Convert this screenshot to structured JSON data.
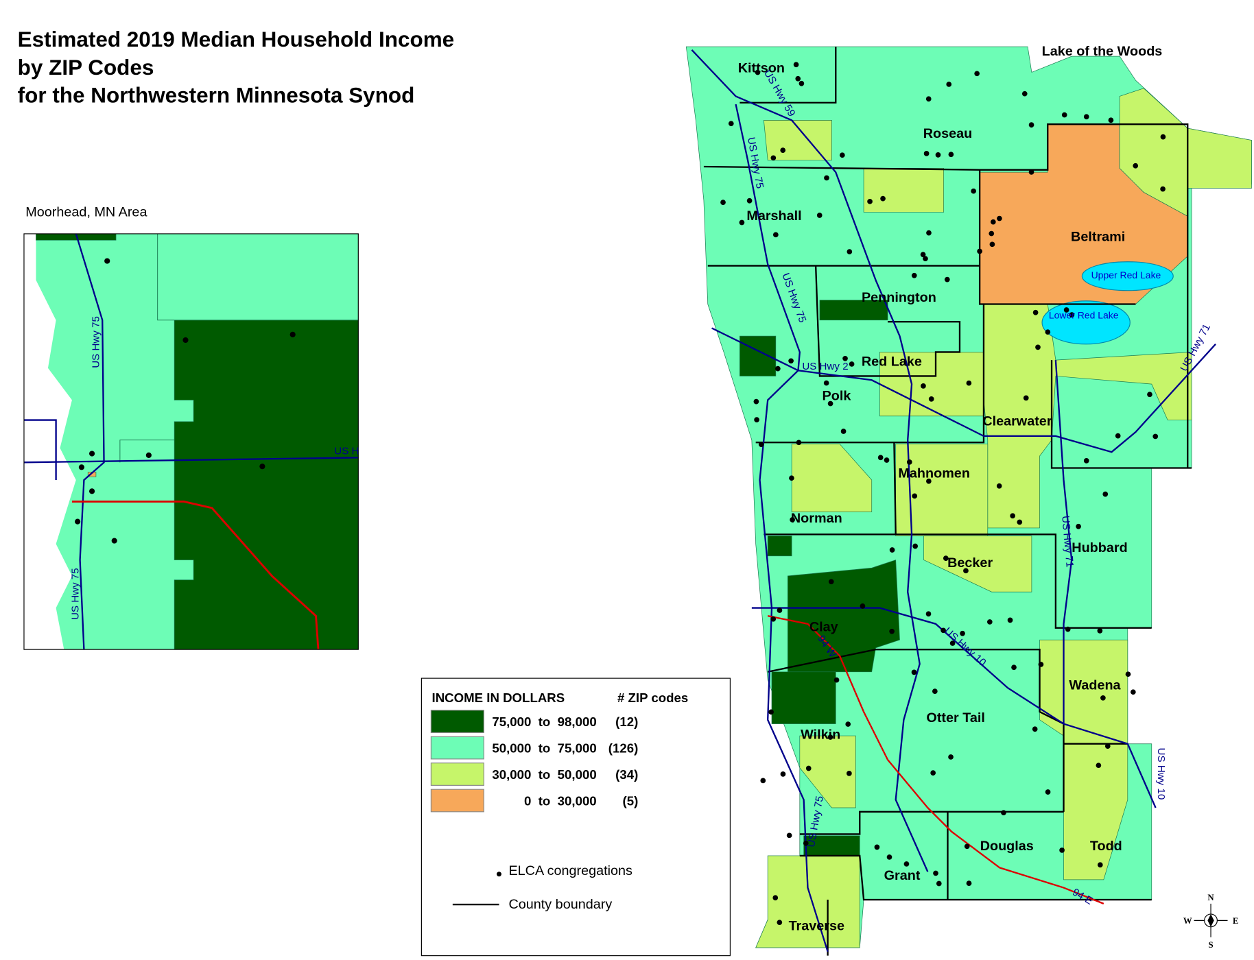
{
  "title": [
    "Estimated 2019 Median Household Income",
    "by ZIP Codes",
    "for the Northwestern Minnesota Synod"
  ],
  "inset": {
    "title": "Moorhead, MN Area",
    "labels": [
      "US Hwy 75",
      "US Hwy 75",
      "US H"
    ]
  },
  "legend": {
    "header": "INCOME IN DOLLARS",
    "count_header": "# ZIP codes",
    "classes": [
      {
        "range": "75,000  to  98,000",
        "count": "(12)",
        "color": "#005a00"
      },
      {
        "range": "50,000  to  75,000",
        "count": "(126)",
        "color": "#6dfdb6"
      },
      {
        "range": "30,000  to  50,000",
        "count": "(34)",
        "color": "#c6f56a"
      },
      {
        "range": "0  to  30,000",
        "count": "(5)",
        "color": "#f7a85a"
      }
    ],
    "symbols": [
      "ELCA congregations",
      "County boundary"
    ]
  },
  "counties": [
    "Kittson",
    "Roseau",
    "Lake of the Woods",
    "Marshall",
    "Beltrami",
    "Pennington",
    "Red Lake",
    "Polk",
    "Clearwater",
    "Mahnomen",
    "Norman",
    "Hubbard",
    "Becker",
    "Clay",
    "Wadena",
    "Otter Tail",
    "Wilkin",
    "Douglas",
    "Todd",
    "Grant",
    "Traverse"
  ],
  "highways": [
    "US Hwy 59",
    "US Hwy 75",
    "US Hwy 75",
    "US Hwy 2",
    "US Hwy 71",
    "US Hwy 71",
    "US Hwy 10",
    "94 W",
    "US Hwy 10",
    "US Hwy 75",
    "94 E"
  ],
  "lakes": [
    "Upper Red Lake",
    "Lower Red Lake"
  ],
  "compass": [
    "N",
    "S",
    "W",
    "E"
  ]
}
